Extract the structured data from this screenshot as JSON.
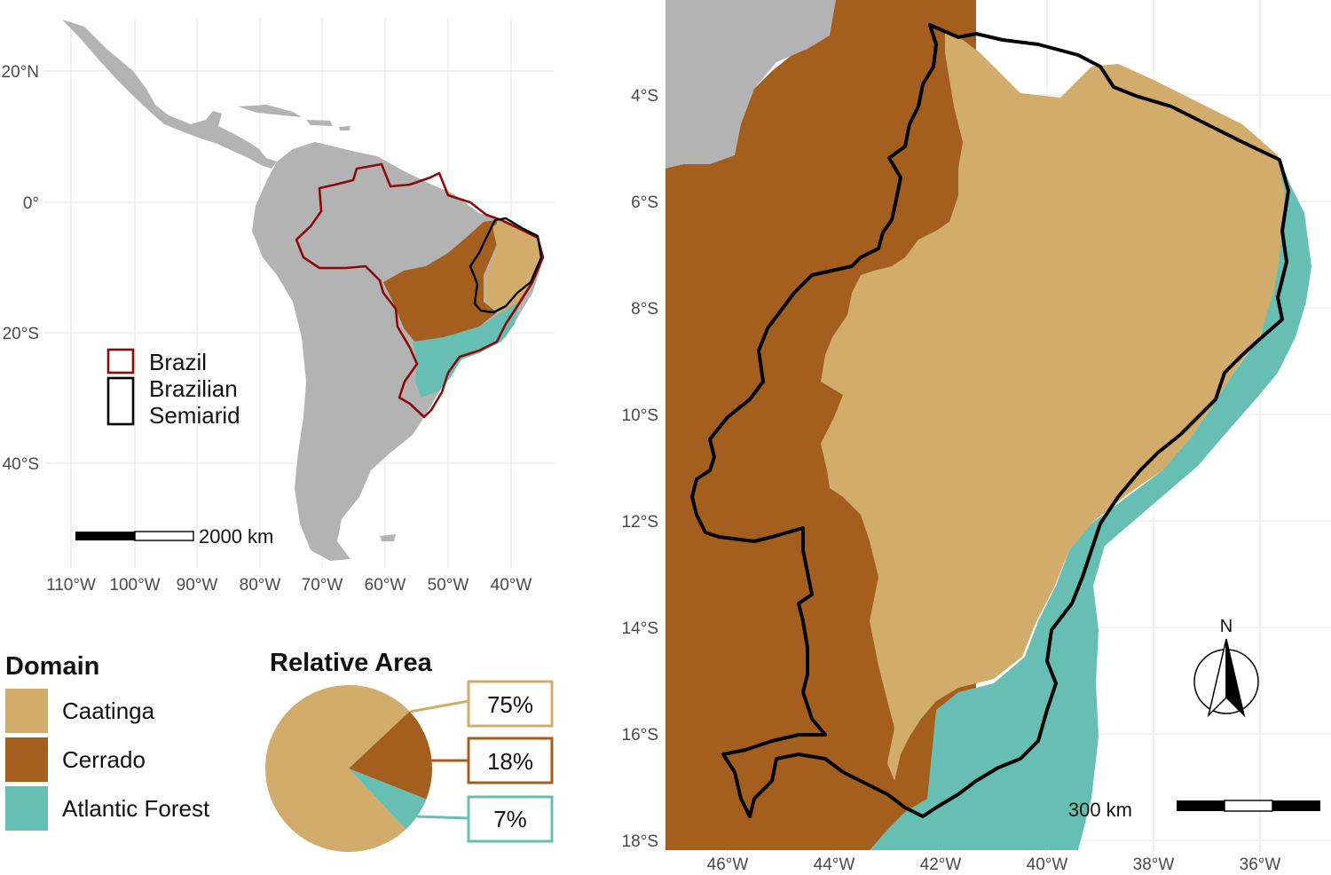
{
  "colors": {
    "caatinga": "#D2AC6A",
    "cerrado": "#A45E1E",
    "atlantic_forest": "#66BFB2",
    "land": "#B3B3B3",
    "brazil_outline": "#8B0A0A",
    "semiarid_outline": "#000000",
    "grid": "#EBEBEB"
  },
  "left_map": {
    "lat_labels": [
      "20°N",
      "0°",
      "20°S",
      "40°S"
    ],
    "lon_labels": [
      "110°W",
      "100°W",
      "90°W",
      "80°W",
      "70°W",
      "60°W",
      "50°W",
      "40°W"
    ],
    "legend": {
      "brazil": "Brazil",
      "semiarid_line1": "Brazilian",
      "semiarid_line2": "Semiarid"
    },
    "scale_label": "2000 km"
  },
  "domain_legend": {
    "title": "Domain",
    "items": [
      "Caatinga",
      "Cerrado",
      "Atlantic Forest"
    ]
  },
  "relative_area": {
    "title": "Relative Area",
    "slices": [
      {
        "label": "Caatinga",
        "value": 75,
        "text": "75%"
      },
      {
        "label": "Cerrado",
        "value": 18,
        "text": "18%"
      },
      {
        "label": "Atlantic Forest",
        "value": 7,
        "text": "7%"
      }
    ]
  },
  "right_map": {
    "lat_labels": [
      "4°S",
      "6°S",
      "8°S",
      "10°S",
      "12°S",
      "14°S",
      "16°S",
      "18°S"
    ],
    "lon_labels": [
      "46°W",
      "44°W",
      "42°W",
      "40°W",
      "38°W",
      "36°W"
    ],
    "north_label": "N",
    "scale_label": "300 km"
  }
}
